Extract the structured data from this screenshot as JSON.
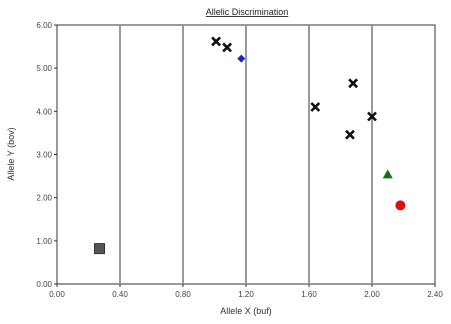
{
  "chart_data": {
    "type": "scatter",
    "title": "Allelic Discrimination",
    "xlabel": "Allele X (buf)",
    "ylabel": "Allele Y (bov)",
    "xlim": [
      0,
      2.4
    ],
    "ylim": [
      0,
      6
    ],
    "x_ticks": [
      "0.00",
      "0.40",
      "0.80",
      "1.20",
      "1.60",
      "2.00",
      "2.40"
    ],
    "y_ticks": [
      "0.00",
      "1.00",
      "2.00",
      "3.00",
      "4.00",
      "5.00",
      "6.00"
    ],
    "grid": "vertical",
    "legend": "none",
    "series": [
      {
        "marker": "x-cross",
        "color": "#111111",
        "points": [
          {
            "x": 1.01,
            "y": 5.62
          },
          {
            "x": 1.08,
            "y": 5.48
          },
          {
            "x": 1.64,
            "y": 4.1
          },
          {
            "x": 1.88,
            "y": 4.65
          },
          {
            "x": 1.86,
            "y": 3.46
          },
          {
            "x": 2.0,
            "y": 3.88
          }
        ]
      },
      {
        "marker": "diamond",
        "color": "#2222cc",
        "points": [
          {
            "x": 1.17,
            "y": 5.22
          }
        ]
      },
      {
        "marker": "triangle",
        "color": "#1a6e1a",
        "points": [
          {
            "x": 2.1,
            "y": 2.54
          }
        ]
      },
      {
        "marker": "circle",
        "color": "#dd1111",
        "points": [
          {
            "x": 2.18,
            "y": 1.82
          }
        ]
      },
      {
        "marker": "square",
        "color": "#555555",
        "points": [
          {
            "x": 0.27,
            "y": 0.82
          }
        ]
      }
    ]
  }
}
